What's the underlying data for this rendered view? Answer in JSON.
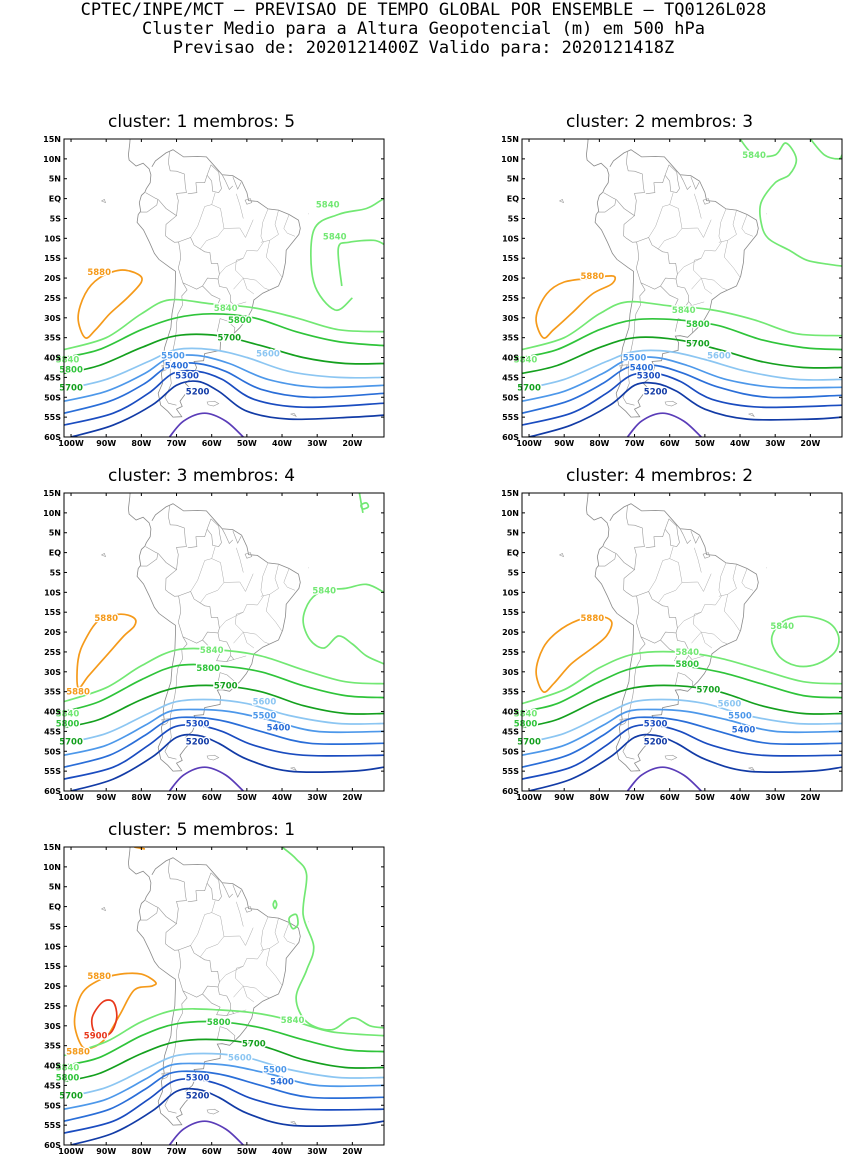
{
  "header": {
    "line1": "CPTEC/INPE/MCT – PREVISAO DE TEMPO GLOBAL POR ENSEMBLE – TQ0126L028",
    "line2": "Cluster Medio para a Altura Geopotencial (m) em 500 hPa",
    "line3": "Previsao de: 2020121400Z    Valido para: 2020121418Z"
  },
  "axes": {
    "lat_labels": [
      "15N",
      "10N",
      "5N",
      "EQ",
      "5S",
      "10S",
      "15S",
      "20S",
      "25S",
      "30S",
      "35S",
      "40S",
      "45S",
      "50S",
      "55S",
      "60S"
    ],
    "lon_labels": [
      "100W",
      "90W",
      "80W",
      "70W",
      "60W",
      "50W",
      "40W",
      "30W",
      "20W"
    ]
  },
  "contour_colors": {
    "5900": "#e8381c",
    "5880": "#f59a1a",
    "5840": "#72e873",
    "5800": "#2fc43a",
    "5700": "#14a01e",
    "5600": "#8cc6f2",
    "5500": "#4d98ea",
    "5400": "#2a6ed8",
    "5300": "#1a4cc0",
    "5200": "#123ba6",
    "5100": "#5a3cb8"
  },
  "panels": [
    {
      "title": "cluster: 1   membros: 5",
      "contour_labels": [
        {
          "text": "5880",
          "lon": -92,
          "lat": -18.5,
          "level": "5880"
        },
        {
          "text": "5840",
          "lon": -27,
          "lat": -1.5,
          "level": "5840"
        },
        {
          "text": "5840",
          "lon": -25,
          "lat": -9.5,
          "level": "5840"
        },
        {
          "text": "5840",
          "lon": -56,
          "lat": -27.5,
          "level": "5840"
        },
        {
          "text": "5840",
          "lon": -101,
          "lat": -40.5,
          "level": "5840"
        },
        {
          "text": "5800",
          "lon": -52,
          "lat": -30.5,
          "level": "5800"
        },
        {
          "text": "5800",
          "lon": -100,
          "lat": -43,
          "level": "5800"
        },
        {
          "text": "5700",
          "lon": -55,
          "lat": -35,
          "level": "5700"
        },
        {
          "text": "5700",
          "lon": -100,
          "lat": -47.5,
          "level": "5700"
        },
        {
          "text": "5600",
          "lon": -44,
          "lat": -39,
          "level": "5600"
        },
        {
          "text": "5500",
          "lon": -71,
          "lat": -39.5,
          "level": "5500"
        },
        {
          "text": "5400",
          "lon": -70,
          "lat": -42,
          "level": "5400"
        },
        {
          "text": "5300",
          "lon": -67,
          "lat": -44.5,
          "level": "5300"
        },
        {
          "text": "5200",
          "lon": -64,
          "lat": -48.5,
          "level": "5200"
        }
      ]
    },
    {
      "title": "cluster: 2   membros: 3",
      "contour_labels": [
        {
          "text": "5880",
          "lon": -82,
          "lat": -19.5,
          "level": "5880"
        },
        {
          "text": "5840",
          "lon": -36,
          "lat": 11,
          "level": "5840"
        },
        {
          "text": "5840",
          "lon": -56,
          "lat": -28,
          "level": "5840"
        },
        {
          "text": "5840",
          "lon": -101,
          "lat": -40.5,
          "level": "5840"
        },
        {
          "text": "5800",
          "lon": -52,
          "lat": -31.5,
          "level": "5800"
        },
        {
          "text": "5700",
          "lon": -52,
          "lat": -36.5,
          "level": "5700"
        },
        {
          "text": "5700",
          "lon": -100,
          "lat": -47.5,
          "level": "5700"
        },
        {
          "text": "5600",
          "lon": -46,
          "lat": -39.5,
          "level": "5600"
        },
        {
          "text": "5500",
          "lon": -70,
          "lat": -40,
          "level": "5500"
        },
        {
          "text": "5400",
          "lon": -68,
          "lat": -42.5,
          "level": "5400"
        },
        {
          "text": "5300",
          "lon": -66,
          "lat": -44.5,
          "level": "5300"
        },
        {
          "text": "5200",
          "lon": -64,
          "lat": -48.5,
          "level": "5200"
        }
      ]
    },
    {
      "title": "cluster: 3   membros: 4",
      "contour_labels": [
        {
          "text": "5880",
          "lon": -90,
          "lat": -16.5,
          "level": "5880"
        },
        {
          "text": "5880",
          "lon": -98,
          "lat": -35,
          "level": "5880"
        },
        {
          "text": "5840",
          "lon": -28,
          "lat": -9.5,
          "level": "5840"
        },
        {
          "text": "5840",
          "lon": -60,
          "lat": -24.5,
          "level": "5840"
        },
        {
          "text": "5840",
          "lon": -101,
          "lat": -40.5,
          "level": "5840"
        },
        {
          "text": "5800",
          "lon": -61,
          "lat": -29,
          "level": "5800"
        },
        {
          "text": "5800",
          "lon": -101,
          "lat": -43,
          "level": "5800"
        },
        {
          "text": "5700",
          "lon": -56,
          "lat": -33.5,
          "level": "5700"
        },
        {
          "text": "5700",
          "lon": -100,
          "lat": -47.5,
          "level": "5700"
        },
        {
          "text": "5600",
          "lon": -45,
          "lat": -37.5,
          "level": "5600"
        },
        {
          "text": "5500",
          "lon": -45,
          "lat": -41,
          "level": "5500"
        },
        {
          "text": "5400",
          "lon": -41,
          "lat": -44,
          "level": "5400"
        },
        {
          "text": "5300",
          "lon": -64,
          "lat": -43,
          "level": "5300"
        },
        {
          "text": "5200",
          "lon": -64,
          "lat": -47.5,
          "level": "5200"
        }
      ]
    },
    {
      "title": "cluster: 4   membros: 2",
      "contour_labels": [
        {
          "text": "5880",
          "lon": -82,
          "lat": -16.5,
          "level": "5880"
        },
        {
          "text": "5840",
          "lon": -28,
          "lat": -18.5,
          "level": "5840"
        },
        {
          "text": "5840",
          "lon": -55,
          "lat": -25,
          "level": "5840"
        },
        {
          "text": "5840",
          "lon": -101,
          "lat": -40.5,
          "level": "5840"
        },
        {
          "text": "5800",
          "lon": -55,
          "lat": -28,
          "level": "5800"
        },
        {
          "text": "5800",
          "lon": -101,
          "lat": -43,
          "level": "5800"
        },
        {
          "text": "5700",
          "lon": -49,
          "lat": -34.5,
          "level": "5700"
        },
        {
          "text": "5700",
          "lon": -100,
          "lat": -47.5,
          "level": "5700"
        },
        {
          "text": "5600",
          "lon": -43,
          "lat": -38,
          "level": "5600"
        },
        {
          "text": "5500",
          "lon": -40,
          "lat": -41,
          "level": "5500"
        },
        {
          "text": "5400",
          "lon": -39,
          "lat": -44.5,
          "level": "5400"
        },
        {
          "text": "5300",
          "lon": -64,
          "lat": -43,
          "level": "5300"
        },
        {
          "text": "5200",
          "lon": -64,
          "lat": -47.5,
          "level": "5200"
        }
      ]
    },
    {
      "title": "cluster: 5   membros: 1",
      "contour_labels": [
        {
          "text": "5880",
          "lon": -92,
          "lat": -17.5,
          "level": "5880"
        },
        {
          "text": "5900",
          "lon": -93,
          "lat": -32.5,
          "level": "5900"
        },
        {
          "text": "5880",
          "lon": -98,
          "lat": -36.5,
          "level": "5880"
        },
        {
          "text": "5840",
          "lon": -37,
          "lat": -28.5,
          "level": "5840"
        },
        {
          "text": "5840",
          "lon": -101,
          "lat": -40.5,
          "level": "5840"
        },
        {
          "text": "5800",
          "lon": -58,
          "lat": -29,
          "level": "5800"
        },
        {
          "text": "5800",
          "lon": -101,
          "lat": -43,
          "level": "5800"
        },
        {
          "text": "5700",
          "lon": -48,
          "lat": -34.5,
          "level": "5700"
        },
        {
          "text": "5700",
          "lon": -100,
          "lat": -47.5,
          "level": "5700"
        },
        {
          "text": "5600",
          "lon": -52,
          "lat": -38,
          "level": "5600"
        },
        {
          "text": "5500",
          "lon": -42,
          "lat": -41,
          "level": "5500"
        },
        {
          "text": "5400",
          "lon": -40,
          "lat": -44,
          "level": "5400"
        },
        {
          "text": "5300",
          "lon": -64,
          "lat": -43,
          "level": "5300"
        },
        {
          "text": "5200",
          "lon": -64,
          "lat": -47.5,
          "level": "5200"
        }
      ]
    }
  ]
}
